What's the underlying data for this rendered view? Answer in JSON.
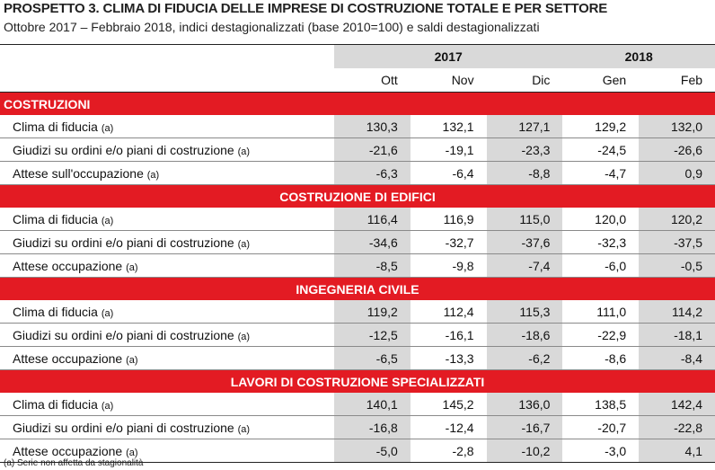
{
  "title": "PROSPETTO 3. CLIMA DI FIDUCIA DELLE IMPRESE DI COSTRUZIONE TOTALE E PER SETTORE",
  "subtitle": "Ottobre 2017 – Febbraio 2018, indici destagionalizzati (base 2010=100) e saldi destagionalizzati",
  "years": [
    "2017",
    "2018"
  ],
  "months": [
    "Ott",
    "Nov",
    "Dic",
    "Gen",
    "Feb"
  ],
  "note_marker": "(a)",
  "sections": [
    {
      "title": "COSTRUZIONI",
      "rows": [
        {
          "label": "Clima di fiducia",
          "values": [
            "130,3",
            "132,1",
            "127,1",
            "129,2",
            "132,0"
          ]
        },
        {
          "label": "Giudizi su ordini e/o piani di costruzione",
          "values": [
            "-21,6",
            "-19,1",
            "-23,3",
            "-24,5",
            "-26,6"
          ]
        },
        {
          "label": "Attese sull'occupazione",
          "values": [
            "-6,3",
            "-6,4",
            "-8,8",
            "-4,7",
            "0,9"
          ]
        }
      ]
    },
    {
      "title": "COSTRUZIONE DI EDIFICI",
      "rows": [
        {
          "label": "Clima di fiducia",
          "values": [
            "116,4",
            "116,9",
            "115,0",
            "120,0",
            "120,2"
          ]
        },
        {
          "label": "Giudizi su ordini e/o piani di costruzione",
          "values": [
            "-34,6",
            "-32,7",
            "-37,6",
            "-32,3",
            "-37,5"
          ]
        },
        {
          "label": "Attese occupazione",
          "values": [
            "-8,5",
            "-9,8",
            "-7,4",
            "-6,0",
            "-0,5"
          ]
        }
      ]
    },
    {
      "title": "INGEGNERIA CIVILE",
      "rows": [
        {
          "label": "Clima di fiducia",
          "values": [
            "119,2",
            "112,4",
            "115,3",
            "111,0",
            "114,2"
          ]
        },
        {
          "label": "Giudizi su ordini e/o piani di costruzione",
          "values": [
            "-12,5",
            "-16,1",
            "-18,6",
            "-22,9",
            "-18,1"
          ]
        },
        {
          "label": "Attese occupazione",
          "values": [
            "-6,5",
            "-13,3",
            "-6,2",
            "-8,6",
            "-8,4"
          ]
        }
      ]
    },
    {
      "title": "LAVORI DI COSTRUZIONE SPECIALIZZATI",
      "rows": [
        {
          "label": "Clima di fiducia",
          "values": [
            "140,1",
            "145,2",
            "136,0",
            "138,5",
            "142,4"
          ]
        },
        {
          "label": "Giudizi su ordini e/o piani di costruzione",
          "values": [
            "-16,8",
            "-12,4",
            "-16,7",
            "-20,7",
            "-22,8"
          ]
        },
        {
          "label": "Attese occupazione",
          "values": [
            "-5,0",
            "-2,8",
            "-10,2",
            "-3,0",
            "4,1"
          ]
        }
      ]
    }
  ],
  "footnote": "(a) Serie non affetta da stagionalità",
  "colors": {
    "section_band": "#e31b23",
    "shade": "#d9d9d9"
  }
}
